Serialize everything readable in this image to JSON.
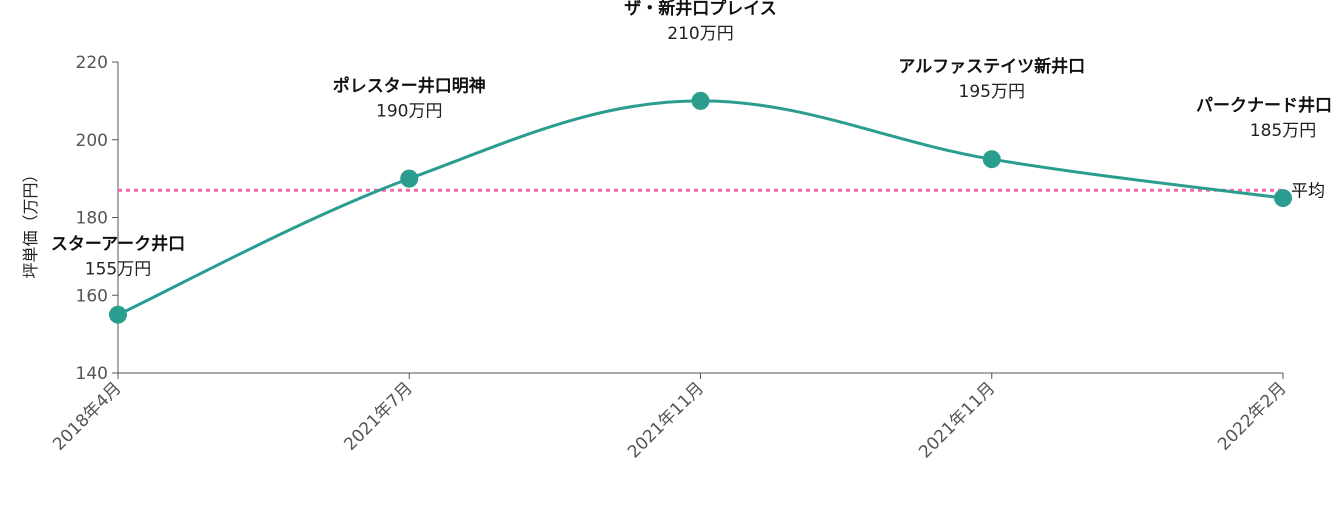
{
  "chart_data": {
    "type": "line",
    "ylabel": "坪単価（万円）",
    "ylim": [
      140,
      220
    ],
    "yticks": [
      140,
      160,
      180,
      200,
      220
    ],
    "x": [
      "2018年4月",
      "2021年7月",
      "2021年11月",
      "2021年11月",
      "2022年2月"
    ],
    "series": [
      {
        "values": [
          155,
          190,
          210,
          195,
          185
        ],
        "point_names": [
          "スターアーク井口",
          "ポレスター井口明神",
          "ザ・新井口プレイス",
          "アルファステイツ新井口",
          "パークナード井口"
        ],
        "point_value_labels": [
          "155万円",
          "190万円",
          "210万円",
          "195万円",
          "185万円"
        ]
      }
    ],
    "reference_line": {
      "label": "平均",
      "value": 187
    },
    "colors": {
      "line": "#2a9d8f",
      "reference": "#f06bb0",
      "axis": "#555555"
    },
    "grid": false
  }
}
